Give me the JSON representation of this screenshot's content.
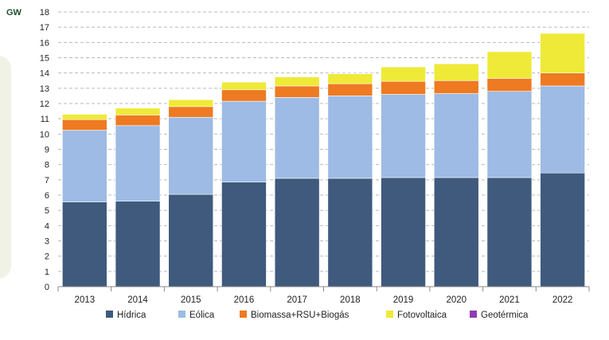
{
  "chart_data": {
    "type": "bar",
    "stacked": true,
    "unit": "GW",
    "ylim": [
      0,
      18
    ],
    "yticks": [
      0,
      1,
      2,
      3,
      4,
      5,
      6,
      7,
      8,
      9,
      10,
      11,
      12,
      13,
      14,
      15,
      16,
      17,
      18
    ],
    "grid": true,
    "legend_position": "bottom",
    "categories": [
      "2013",
      "2014",
      "2015",
      "2016",
      "2017",
      "2018",
      "2019",
      "2020",
      "2021",
      "2022"
    ],
    "series": [
      {
        "name": "Hídrica",
        "color": "#3f5a7d",
        "values": [
          5.55,
          5.6,
          6.05,
          6.85,
          7.1,
          7.1,
          7.15,
          7.15,
          7.15,
          7.45
        ]
      },
      {
        "name": "Eólica",
        "color": "#9dbbe4",
        "values": [
          4.7,
          4.95,
          5.05,
          5.3,
          5.3,
          5.4,
          5.45,
          5.5,
          5.65,
          5.7
        ]
      },
      {
        "name": "Biomassa+RSU+Biogás",
        "color": "#ee7a22",
        "values": [
          0.7,
          0.7,
          0.7,
          0.75,
          0.75,
          0.8,
          0.85,
          0.85,
          0.85,
          0.85
        ]
      },
      {
        "name": "Fotovoltaica",
        "color": "#eeea37",
        "values": [
          0.35,
          0.45,
          0.45,
          0.5,
          0.6,
          0.65,
          0.95,
          1.1,
          1.75,
          2.6
        ]
      },
      {
        "name": "Geotérmica",
        "color": "#8e3db4",
        "values": [
          0.03,
          0.03,
          0.03,
          0.03,
          0.03,
          0.03,
          0.03,
          0.03,
          0.03,
          0.03
        ]
      }
    ]
  }
}
